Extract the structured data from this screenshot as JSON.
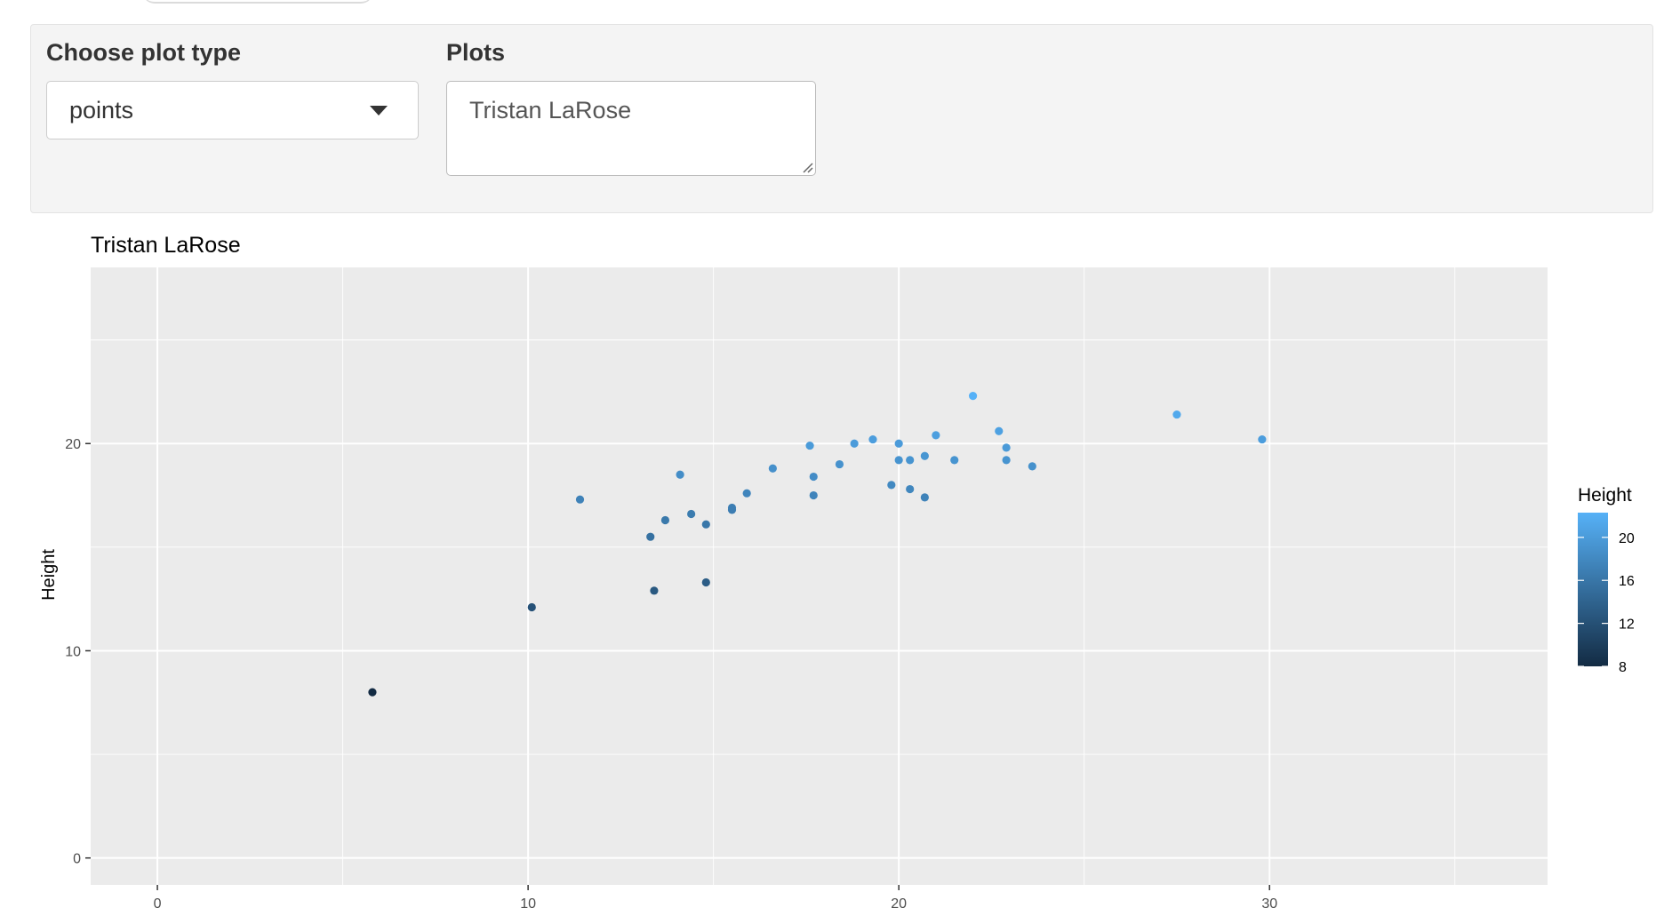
{
  "controls": {
    "plot_type_label": "Choose plot type",
    "plot_type_value": "points",
    "plots_label": "Plots",
    "plots_value": "Tristan LaRose"
  },
  "colors": {
    "panel_bg": "#ebebeb",
    "grid": "#ffffff",
    "gradient_low": "#132b43",
    "gradient_high": "#56b1f7"
  },
  "chart_data": {
    "type": "scatter",
    "title": "Tristan LaRose",
    "xlabel": "",
    "ylabel": "Height",
    "xlim": [
      -1.8,
      37.5
    ],
    "ylim": [
      -1.3,
      28.5
    ],
    "x_ticks": [
      0,
      10,
      20,
      30
    ],
    "y_ticks": [
      0,
      10,
      20
    ],
    "grid": true,
    "legend": {
      "title": "Height",
      "position": "right",
      "type": "colorbar",
      "breaks": [
        20,
        16,
        12,
        8
      ],
      "range": [
        8,
        22.3
      ]
    },
    "points": [
      {
        "x": 5.8,
        "y": 8.0
      },
      {
        "x": 10.1,
        "y": 12.1
      },
      {
        "x": 11.4,
        "y": 17.3
      },
      {
        "x": 13.3,
        "y": 15.5
      },
      {
        "x": 13.4,
        "y": 12.9
      },
      {
        "x": 13.7,
        "y": 16.3
      },
      {
        "x": 14.1,
        "y": 18.5
      },
      {
        "x": 14.4,
        "y": 16.6
      },
      {
        "x": 14.8,
        "y": 13.3
      },
      {
        "x": 14.8,
        "y": 16.1
      },
      {
        "x": 15.5,
        "y": 16.8
      },
      {
        "x": 15.5,
        "y": 16.9
      },
      {
        "x": 15.9,
        "y": 17.6
      },
      {
        "x": 16.6,
        "y": 18.8
      },
      {
        "x": 17.6,
        "y": 19.9
      },
      {
        "x": 17.7,
        "y": 18.4
      },
      {
        "x": 17.7,
        "y": 17.5
      },
      {
        "x": 18.4,
        "y": 19.0
      },
      {
        "x": 18.8,
        "y": 20.0
      },
      {
        "x": 19.3,
        "y": 20.2
      },
      {
        "x": 19.8,
        "y": 18.0
      },
      {
        "x": 20.0,
        "y": 20.0
      },
      {
        "x": 20.0,
        "y": 19.2
      },
      {
        "x": 20.3,
        "y": 19.2
      },
      {
        "x": 20.3,
        "y": 17.8
      },
      {
        "x": 20.7,
        "y": 19.4
      },
      {
        "x": 20.7,
        "y": 17.4
      },
      {
        "x": 21.0,
        "y": 20.4
      },
      {
        "x": 21.5,
        "y": 19.2
      },
      {
        "x": 22.0,
        "y": 22.3
      },
      {
        "x": 22.7,
        "y": 20.6
      },
      {
        "x": 22.9,
        "y": 19.8
      },
      {
        "x": 22.9,
        "y": 19.2
      },
      {
        "x": 23.6,
        "y": 18.9
      },
      {
        "x": 27.5,
        "y": 21.4
      },
      {
        "x": 29.8,
        "y": 20.2
      }
    ]
  }
}
